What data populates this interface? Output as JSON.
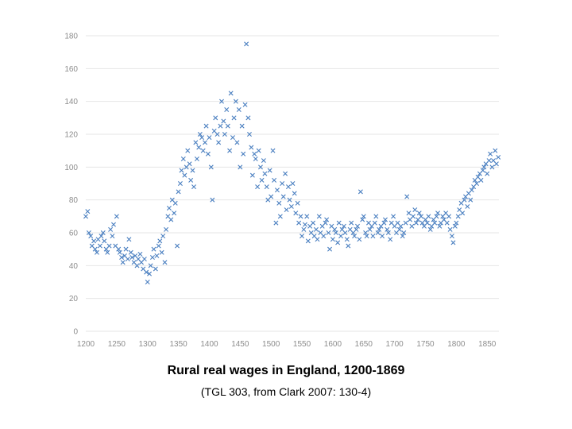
{
  "chart_data": {
    "type": "scatter",
    "title": "Rural real wages in England, 1200-1869",
    "subtitle": "(TGL 303, from Clark 2007: 130-4)",
    "xlabel": "",
    "ylabel": "",
    "xlim": [
      1200,
      1869
    ],
    "ylim": [
      0,
      180
    ],
    "xticks": [
      "1200",
      "1250",
      "1300",
      "1350",
      "1400",
      "1450",
      "1500",
      "1550",
      "1600",
      "1650",
      "1700",
      "1750",
      "1800",
      "1850"
    ],
    "yticks": [
      "0",
      "20",
      "40",
      "60",
      "80",
      "100",
      "120",
      "140",
      "160",
      "180"
    ],
    "grid": true,
    "marker": "x",
    "color": "#4a7fc0",
    "series": [
      {
        "points": [
          [
            1200,
            70
          ],
          [
            1203,
            73
          ],
          [
            1205,
            60
          ],
          [
            1208,
            58
          ],
          [
            1210,
            52
          ],
          [
            1213,
            55
          ],
          [
            1215,
            50
          ],
          [
            1218,
            48
          ],
          [
            1220,
            56
          ],
          [
            1223,
            52
          ],
          [
            1225,
            58
          ],
          [
            1228,
            60
          ],
          [
            1230,
            55
          ],
          [
            1233,
            50
          ],
          [
            1235,
            48
          ],
          [
            1238,
            52
          ],
          [
            1240,
            62
          ],
          [
            1243,
            58
          ],
          [
            1245,
            65
          ],
          [
            1248,
            52
          ],
          [
            1250,
            70
          ],
          [
            1253,
            50
          ],
          [
            1255,
            48
          ],
          [
            1258,
            45
          ],
          [
            1260,
            42
          ],
          [
            1263,
            46
          ],
          [
            1265,
            50
          ],
          [
            1268,
            44
          ],
          [
            1270,
            56
          ],
          [
            1273,
            48
          ],
          [
            1275,
            45
          ],
          [
            1278,
            42
          ],
          [
            1280,
            46
          ],
          [
            1283,
            40
          ],
          [
            1285,
            44
          ],
          [
            1288,
            47
          ],
          [
            1290,
            42
          ],
          [
            1293,
            38
          ],
          [
            1295,
            44
          ],
          [
            1298,
            36
          ],
          [
            1300,
            30
          ],
          [
            1303,
            35
          ],
          [
            1305,
            40
          ],
          [
            1308,
            45
          ],
          [
            1310,
            50
          ],
          [
            1313,
            38
          ],
          [
            1315,
            46
          ],
          [
            1318,
            52
          ],
          [
            1320,
            55
          ],
          [
            1323,
            48
          ],
          [
            1325,
            58
          ],
          [
            1328,
            42
          ],
          [
            1330,
            62
          ],
          [
            1333,
            70
          ],
          [
            1335,
            75
          ],
          [
            1338,
            68
          ],
          [
            1340,
            80
          ],
          [
            1343,
            72
          ],
          [
            1345,
            78
          ],
          [
            1348,
            52
          ],
          [
            1350,
            85
          ],
          [
            1353,
            90
          ],
          [
            1355,
            98
          ],
          [
            1358,
            105
          ],
          [
            1360,
            95
          ],
          [
            1363,
            100
          ],
          [
            1365,
            110
          ],
          [
            1368,
            102
          ],
          [
            1370,
            92
          ],
          [
            1373,
            98
          ],
          [
            1375,
            88
          ],
          [
            1378,
            115
          ],
          [
            1380,
            105
          ],
          [
            1383,
            112
          ],
          [
            1385,
            120
          ],
          [
            1388,
            118
          ],
          [
            1390,
            110
          ],
          [
            1393,
            115
          ],
          [
            1395,
            125
          ],
          [
            1398,
            108
          ],
          [
            1400,
            118
          ],
          [
            1403,
            100
          ],
          [
            1405,
            80
          ],
          [
            1408,
            122
          ],
          [
            1410,
            130
          ],
          [
            1413,
            120
          ],
          [
            1415,
            115
          ],
          [
            1418,
            125
          ],
          [
            1420,
            140
          ],
          [
            1423,
            128
          ],
          [
            1425,
            120
          ],
          [
            1428,
            135
          ],
          [
            1430,
            125
          ],
          [
            1433,
            110
          ],
          [
            1435,
            145
          ],
          [
            1438,
            118
          ],
          [
            1440,
            130
          ],
          [
            1443,
            140
          ],
          [
            1445,
            115
          ],
          [
            1448,
            135
          ],
          [
            1450,
            100
          ],
          [
            1453,
            125
          ],
          [
            1455,
            108
          ],
          [
            1458,
            138
          ],
          [
            1460,
            175
          ],
          [
            1463,
            130
          ],
          [
            1465,
            120
          ],
          [
            1468,
            112
          ],
          [
            1470,
            95
          ],
          [
            1473,
            108
          ],
          [
            1475,
            105
          ],
          [
            1478,
            88
          ],
          [
            1480,
            110
          ],
          [
            1483,
            100
          ],
          [
            1485,
            92
          ],
          [
            1488,
            104
          ],
          [
            1490,
            96
          ],
          [
            1493,
            88
          ],
          [
            1495,
            80
          ],
          [
            1498,
            98
          ],
          [
            1500,
            82
          ],
          [
            1503,
            110
          ],
          [
            1505,
            92
          ],
          [
            1508,
            66
          ],
          [
            1510,
            86
          ],
          [
            1513,
            78
          ],
          [
            1515,
            70
          ],
          [
            1518,
            90
          ],
          [
            1520,
            82
          ],
          [
            1523,
            96
          ],
          [
            1525,
            74
          ],
          [
            1528,
            88
          ],
          [
            1530,
            80
          ],
          [
            1533,
            76
          ],
          [
            1535,
            90
          ],
          [
            1538,
            84
          ],
          [
            1540,
            72
          ],
          [
            1543,
            78
          ],
          [
            1545,
            66
          ],
          [
            1548,
            70
          ],
          [
            1550,
            58
          ],
          [
            1553,
            62
          ],
          [
            1555,
            65
          ],
          [
            1558,
            70
          ],
          [
            1560,
            55
          ],
          [
            1563,
            64
          ],
          [
            1565,
            60
          ],
          [
            1568,
            66
          ],
          [
            1570,
            58
          ],
          [
            1573,
            62
          ],
          [
            1575,
            56
          ],
          [
            1578,
            70
          ],
          [
            1580,
            60
          ],
          [
            1583,
            64
          ],
          [
            1585,
            58
          ],
          [
            1588,
            66
          ],
          [
            1590,
            68
          ],
          [
            1593,
            60
          ],
          [
            1595,
            50
          ],
          [
            1598,
            64
          ],
          [
            1600,
            56
          ],
          [
            1603,
            62
          ],
          [
            1605,
            60
          ],
          [
            1608,
            54
          ],
          [
            1610,
            66
          ],
          [
            1613,
            58
          ],
          [
            1615,
            62
          ],
          [
            1618,
            64
          ],
          [
            1620,
            60
          ],
          [
            1623,
            56
          ],
          [
            1625,
            52
          ],
          [
            1628,
            62
          ],
          [
            1630,
            66
          ],
          [
            1633,
            60
          ],
          [
            1635,
            58
          ],
          [
            1638,
            62
          ],
          [
            1640,
            64
          ],
          [
            1643,
            56
          ],
          [
            1645,
            85
          ],
          [
            1648,
            68
          ],
          [
            1650,
            70
          ],
          [
            1653,
            60
          ],
          [
            1655,
            58
          ],
          [
            1658,
            66
          ],
          [
            1660,
            62
          ],
          [
            1663,
            64
          ],
          [
            1665,
            58
          ],
          [
            1668,
            66
          ],
          [
            1670,
            70
          ],
          [
            1673,
            60
          ],
          [
            1675,
            62
          ],
          [
            1678,
            64
          ],
          [
            1680,
            58
          ],
          [
            1683,
            66
          ],
          [
            1685,
            68
          ],
          [
            1688,
            62
          ],
          [
            1690,
            60
          ],
          [
            1693,
            56
          ],
          [
            1695,
            66
          ],
          [
            1698,
            70
          ],
          [
            1700,
            64
          ],
          [
            1703,
            60
          ],
          [
            1705,
            66
          ],
          [
            1708,
            62
          ],
          [
            1710,
            64
          ],
          [
            1713,
            58
          ],
          [
            1715,
            60
          ],
          [
            1718,
            66
          ],
          [
            1720,
            82
          ],
          [
            1723,
            72
          ],
          [
            1725,
            68
          ],
          [
            1728,
            64
          ],
          [
            1730,
            70
          ],
          [
            1733,
            74
          ],
          [
            1735,
            66
          ],
          [
            1738,
            68
          ],
          [
            1740,
            72
          ],
          [
            1743,
            70
          ],
          [
            1745,
            66
          ],
          [
            1748,
            64
          ],
          [
            1750,
            68
          ],
          [
            1753,
            66
          ],
          [
            1755,
            70
          ],
          [
            1758,
            62
          ],
          [
            1760,
            64
          ],
          [
            1763,
            68
          ],
          [
            1765,
            66
          ],
          [
            1768,
            70
          ],
          [
            1770,
            72
          ],
          [
            1773,
            64
          ],
          [
            1775,
            66
          ],
          [
            1778,
            70
          ],
          [
            1780,
            68
          ],
          [
            1783,
            72
          ],
          [
            1785,
            66
          ],
          [
            1788,
            70
          ],
          [
            1790,
            62
          ],
          [
            1793,
            58
          ],
          [
            1795,
            54
          ],
          [
            1798,
            64
          ],
          [
            1800,
            66
          ],
          [
            1803,
            70
          ],
          [
            1805,
            74
          ],
          [
            1808,
            78
          ],
          [
            1810,
            72
          ],
          [
            1813,
            80
          ],
          [
            1815,
            82
          ],
          [
            1818,
            76
          ],
          [
            1820,
            84
          ],
          [
            1823,
            80
          ],
          [
            1825,
            86
          ],
          [
            1828,
            88
          ],
          [
            1830,
            92
          ],
          [
            1833,
            90
          ],
          [
            1835,
            94
          ],
          [
            1838,
            96
          ],
          [
            1840,
            92
          ],
          [
            1843,
            98
          ],
          [
            1845,
            100
          ],
          [
            1848,
            102
          ],
          [
            1850,
            96
          ],
          [
            1853,
            104
          ],
          [
            1855,
            108
          ],
          [
            1858,
            100
          ],
          [
            1860,
            104
          ],
          [
            1863,
            110
          ],
          [
            1865,
            102
          ],
          [
            1868,
            106
          ]
        ]
      }
    ]
  }
}
